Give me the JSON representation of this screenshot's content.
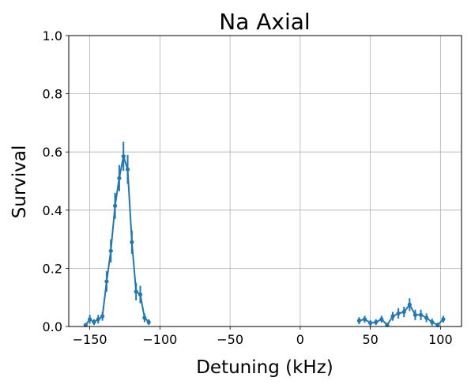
{
  "chart_data": {
    "type": "line",
    "title": "Na Axial",
    "xlabel": "Detuning (kHz)",
    "ylabel": "Survival",
    "xlim": [
      -165,
      115
    ],
    "ylim": [
      0,
      1.0
    ],
    "grid": true,
    "x_ticks": [
      -150,
      -100,
      -50,
      0,
      50,
      100
    ],
    "x_tick_labels": [
      "−150",
      "−100",
      "−50",
      "0",
      "50",
      "100"
    ],
    "y_ticks": [
      0,
      0.2,
      0.4,
      0.6,
      0.8,
      1.0
    ],
    "y_tick_labels": [
      "0.0",
      "0.2",
      "0.4",
      "0.6",
      "0.8",
      "1.0"
    ],
    "series_color": "#1f77b4",
    "series": [
      {
        "x": [
          -153,
          -150,
          -147,
          -144,
          -141,
          -138,
          -135,
          -132,
          -129,
          -126,
          -123,
          -120,
          -117,
          -114,
          -111,
          -108,
          -105,
          -102,
          -99
        ],
        "y": [
          0.005,
          0.025,
          0.015,
          0.025,
          0.035,
          0.155,
          0.26,
          0.415,
          0.51,
          0.585,
          0.54,
          0.29,
          0.12,
          0.11,
          0.03,
          0.015,
          null,
          null,
          null
        ],
        "err": [
          0.005,
          0.015,
          0.01,
          0.015,
          0.015,
          0.035,
          0.04,
          0.045,
          0.045,
          0.05,
          0.05,
          0.04,
          0.03,
          0.03,
          0.015,
          0.01,
          null,
          null,
          null
        ]
      },
      {
        "x": [
          42,
          46,
          50,
          54,
          58,
          62,
          66,
          70,
          74,
          78,
          82,
          86,
          90,
          94,
          98,
          102
        ],
        "y": [
          0.02,
          0.025,
          0.012,
          0.015,
          0.025,
          0.005,
          0.035,
          0.045,
          0.05,
          0.075,
          0.04,
          0.04,
          0.03,
          0.015,
          0.005,
          0.025
        ],
        "err": [
          0.012,
          0.012,
          0.01,
          0.01,
          0.012,
          0.008,
          0.015,
          0.018,
          0.018,
          0.022,
          0.018,
          0.018,
          0.015,
          0.012,
          0.008,
          0.012
        ]
      }
    ]
  }
}
